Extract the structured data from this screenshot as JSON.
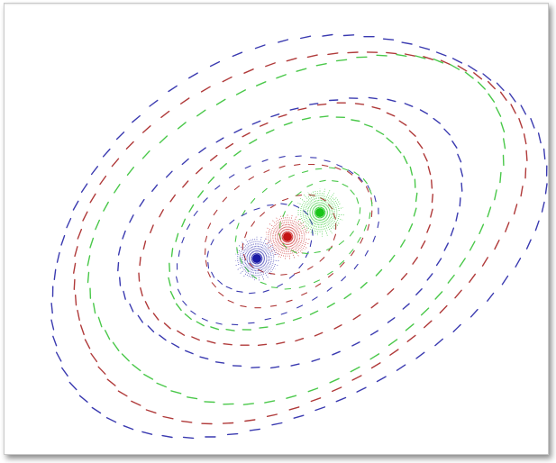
{
  "figure": {
    "colors": {
      "blue": "#1a1aa6",
      "red": "#c41414",
      "green": "#18c418",
      "blue_trace": "#3a3ab0",
      "red_trace": "#b03a3a",
      "green_trace": "#4ac84a",
      "frame_border": "#c9c9c9",
      "background": "#ffffff"
    },
    "particles": [
      {
        "name": "blue",
        "color_key": "blue"
      },
      {
        "name": "red",
        "color_key": "red"
      },
      {
        "name": "green",
        "color_key": "green"
      }
    ]
  }
}
